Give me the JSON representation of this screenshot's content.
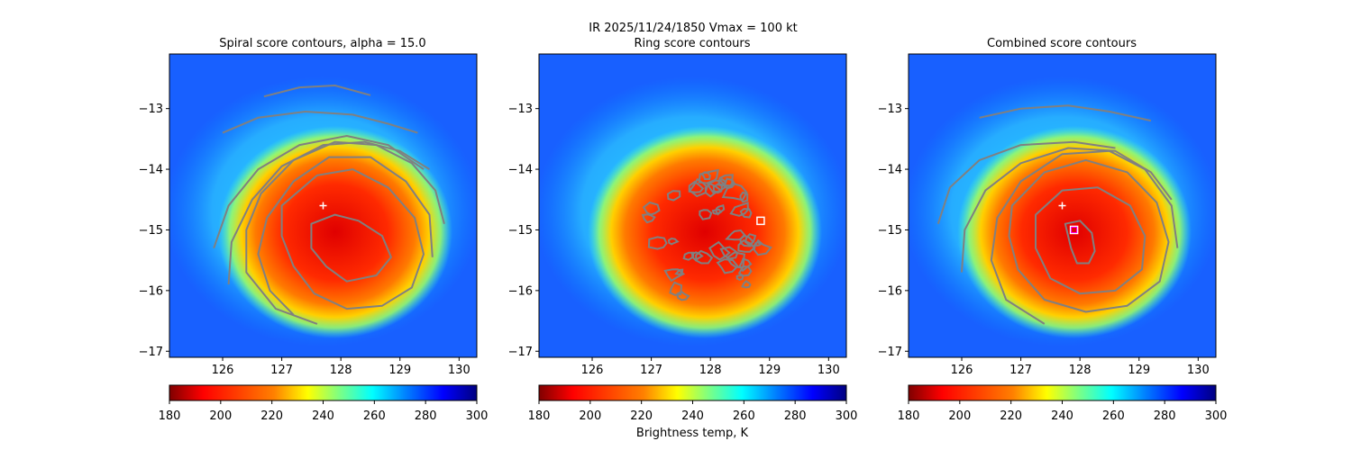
{
  "figure": {
    "suptitle_line1": "IR  2025/11/24/1850    Vmax = 100 kt",
    "colorbar_label": "Brightness temp, K"
  },
  "colormap": {
    "name": "jet_r",
    "stops": [
      "#800000",
      "#ff0000",
      "#ff8000",
      "#ffff00",
      "#80ff80",
      "#00ffff",
      "#0080ff",
      "#0000ff",
      "#000080"
    ],
    "contour_color": "#808080",
    "cross_color": "#ffffff",
    "ring_marker_color": "#ffffff",
    "combined_marker_color": "#ff00ff"
  },
  "chart_data": [
    {
      "type": "heatmap",
      "title": "Spiral score contours, alpha = 15.0",
      "xlim": [
        125.1,
        130.3
      ],
      "ylim": [
        -17.1,
        -12.1
      ],
      "xticks": [
        126,
        127,
        128,
        129,
        130
      ],
      "yticks": [
        -13,
        -14,
        -15,
        -16,
        -17
      ],
      "xticklabels": [
        "126",
        "127",
        "128",
        "129",
        "130"
      ],
      "yticklabels": [
        "−13",
        "−14",
        "−15",
        "−16",
        "−17"
      ],
      "storm_center": {
        "lon": 128.0,
        "lat": -15.3,
        "radius_deg": 2.0
      },
      "marker": {
        "symbol": "+",
        "lon": 127.7,
        "lat": -14.6
      },
      "contours": [
        {
          "closed": true,
          "points": [
            [
              127.5,
              -14.9
            ],
            [
              127.9,
              -14.75
            ],
            [
              128.3,
              -14.85
            ],
            [
              128.7,
              -15.1
            ],
            [
              128.85,
              -15.45
            ],
            [
              128.6,
              -15.75
            ],
            [
              128.1,
              -15.85
            ],
            [
              127.75,
              -15.6
            ],
            [
              127.5,
              -15.3
            ],
            [
              127.5,
              -14.9
            ]
          ]
        },
        {
          "closed": true,
          "points": [
            [
              127.0,
              -14.6
            ],
            [
              127.6,
              -14.1
            ],
            [
              128.2,
              -14.0
            ],
            [
              128.8,
              -14.3
            ],
            [
              129.25,
              -14.8
            ],
            [
              129.4,
              -15.4
            ],
            [
              129.2,
              -15.95
            ],
            [
              128.7,
              -16.25
            ],
            [
              128.1,
              -16.3
            ],
            [
              127.55,
              -16.05
            ],
            [
              127.2,
              -15.6
            ],
            [
              127.0,
              -15.1
            ],
            [
              127.0,
              -14.6
            ]
          ]
        },
        {
          "closed": false,
          "points": [
            [
              127.2,
              -16.4
            ],
            [
              126.8,
              -16.0
            ],
            [
              126.6,
              -15.4
            ],
            [
              126.75,
              -14.8
            ],
            [
              127.2,
              -14.2
            ],
            [
              127.8,
              -13.8
            ],
            [
              128.5,
              -13.8
            ],
            [
              129.1,
              -14.2
            ],
            [
              129.5,
              -14.75
            ],
            [
              129.55,
              -15.45
            ]
          ]
        },
        {
          "closed": false,
          "points": [
            [
              127.6,
              -16.55
            ],
            [
              126.9,
              -16.3
            ],
            [
              126.4,
              -15.7
            ],
            [
              126.4,
              -15.0
            ],
            [
              126.65,
              -14.4
            ],
            [
              127.2,
              -13.85
            ],
            [
              127.9,
              -13.55
            ],
            [
              128.6,
              -13.6
            ],
            [
              129.2,
              -13.9
            ],
            [
              129.6,
              -14.35
            ],
            [
              129.75,
              -14.9
            ]
          ]
        },
        {
          "closed": false,
          "points": [
            [
              126.1,
              -15.9
            ],
            [
              126.15,
              -15.2
            ],
            [
              126.5,
              -14.5
            ],
            [
              127.0,
              -13.95
            ],
            [
              127.7,
              -13.6
            ],
            [
              128.4,
              -13.55
            ],
            [
              129.0,
              -13.7
            ],
            [
              129.5,
              -14.0
            ]
          ]
        },
        {
          "closed": false,
          "points": [
            [
              125.85,
              -15.3
            ],
            [
              126.1,
              -14.6
            ],
            [
              126.6,
              -14.0
            ],
            [
              127.3,
              -13.6
            ],
            [
              128.1,
              -13.45
            ],
            [
              128.8,
              -13.6
            ],
            [
              129.4,
              -14.0
            ]
          ]
        },
        {
          "closed": false,
          "points": [
            [
              126.0,
              -13.4
            ],
            [
              126.6,
              -13.15
            ],
            [
              127.4,
              -13.05
            ],
            [
              128.2,
              -13.1
            ],
            [
              128.8,
              -13.25
            ],
            [
              129.3,
              -13.4
            ]
          ]
        },
        {
          "closed": false,
          "points": [
            [
              126.7,
              -12.8
            ],
            [
              127.3,
              -12.65
            ],
            [
              127.9,
              -12.62
            ],
            [
              128.5,
              -12.78
            ]
          ]
        }
      ]
    },
    {
      "type": "heatmap",
      "title": "Ring score contours",
      "xlim": [
        125.1,
        130.3
      ],
      "ylim": [
        -17.1,
        -12.1
      ],
      "xticks": [
        126,
        127,
        128,
        129,
        130
      ],
      "yticks": [
        -13,
        -14,
        -15,
        -16,
        -17
      ],
      "xticklabels": [
        "126",
        "127",
        "128",
        "129",
        "130"
      ],
      "yticklabels": [
        "−13",
        "−14",
        "−15",
        "−16",
        "−17"
      ],
      "storm_center": {
        "lon": 128.0,
        "lat": -15.3,
        "radius_deg": 2.0
      },
      "marker": {
        "symbol": "square",
        "lon": 128.85,
        "lat": -14.85
      },
      "contour_region": {
        "lon_min": 126.9,
        "lon_max": 129.0,
        "lat_min": -16.3,
        "lat_max": -14.0,
        "count": 55
      },
      "contours": []
    },
    {
      "type": "heatmap",
      "title": "Combined score contours",
      "xlim": [
        125.1,
        130.3
      ],
      "ylim": [
        -17.1,
        -12.1
      ],
      "xticks": [
        126,
        127,
        128,
        129,
        130
      ],
      "yticks": [
        -13,
        -14,
        -15,
        -16,
        -17
      ],
      "xticklabels": [
        "126",
        "127",
        "128",
        "129",
        "130"
      ],
      "yticklabels": [
        "−13",
        "−14",
        "−15",
        "−16",
        "−17"
      ],
      "storm_center": {
        "lon": 128.0,
        "lat": -15.3,
        "radius_deg": 2.0
      },
      "marker": {
        "symbol": "+",
        "lon": 127.7,
        "lat": -14.6
      },
      "marker2": {
        "symbol": "square",
        "lon": 127.9,
        "lat": -15.0
      },
      "contours": [
        {
          "closed": true,
          "points": [
            [
              127.75,
              -14.9
            ],
            [
              128.0,
              -14.85
            ],
            [
              128.2,
              -15.05
            ],
            [
              128.25,
              -15.35
            ],
            [
              128.15,
              -15.55
            ],
            [
              127.95,
              -15.55
            ],
            [
              127.85,
              -15.3
            ],
            [
              127.75,
              -14.9
            ]
          ]
        },
        {
          "closed": true,
          "points": [
            [
              127.25,
              -14.75
            ],
            [
              127.7,
              -14.35
            ],
            [
              128.3,
              -14.3
            ],
            [
              128.85,
              -14.6
            ],
            [
              129.1,
              -15.1
            ],
            [
              129.05,
              -15.65
            ],
            [
              128.6,
              -16.0
            ],
            [
              128.0,
              -16.05
            ],
            [
              127.5,
              -15.8
            ],
            [
              127.25,
              -15.3
            ],
            [
              127.25,
              -14.75
            ]
          ]
        },
        {
          "closed": true,
          "points": [
            [
              126.85,
              -14.6
            ],
            [
              127.4,
              -14.05
            ],
            [
              128.1,
              -13.85
            ],
            [
              128.8,
              -14.05
            ],
            [
              129.3,
              -14.55
            ],
            [
              129.5,
              -15.2
            ],
            [
              129.35,
              -15.85
            ],
            [
              128.8,
              -16.25
            ],
            [
              128.1,
              -16.35
            ],
            [
              127.4,
              -16.15
            ],
            [
              126.95,
              -15.65
            ],
            [
              126.8,
              -15.1
            ],
            [
              126.85,
              -14.6
            ]
          ]
        },
        {
          "closed": false,
          "points": [
            [
              127.4,
              -16.55
            ],
            [
              126.75,
              -16.15
            ],
            [
              126.5,
              -15.5
            ],
            [
              126.6,
              -14.8
            ],
            [
              127.0,
              -14.2
            ],
            [
              127.7,
              -13.75
            ],
            [
              128.5,
              -13.7
            ],
            [
              129.1,
              -14.0
            ],
            [
              129.55,
              -14.6
            ],
            [
              129.65,
              -15.3
            ]
          ]
        },
        {
          "closed": false,
          "points": [
            [
              126.0,
              -15.7
            ],
            [
              126.05,
              -15.0
            ],
            [
              126.4,
              -14.35
            ],
            [
              127.0,
              -13.9
            ],
            [
              127.8,
              -13.65
            ],
            [
              128.6,
              -13.7
            ],
            [
              129.2,
              -14.05
            ],
            [
              129.55,
              -14.5
            ]
          ]
        },
        {
          "closed": false,
          "points": [
            [
              125.6,
              -14.9
            ],
            [
              125.8,
              -14.3
            ],
            [
              126.3,
              -13.85
            ],
            [
              127.0,
              -13.6
            ],
            [
              127.9,
              -13.55
            ],
            [
              128.6,
              -13.65
            ]
          ]
        },
        {
          "closed": false,
          "points": [
            [
              126.3,
              -13.15
            ],
            [
              127.0,
              -13.0
            ],
            [
              127.8,
              -12.95
            ],
            [
              128.5,
              -13.05
            ],
            [
              129.2,
              -13.2
            ]
          ]
        }
      ]
    }
  ],
  "colorbars": [
    {
      "ticks": [
        180,
        200,
        220,
        240,
        260,
        280,
        300
      ],
      "ticklabels": [
        "180",
        "200",
        "220",
        "240",
        "260",
        "280",
        "300"
      ],
      "range": [
        180,
        300
      ]
    },
    {
      "ticks": [
        180,
        200,
        220,
        240,
        260,
        280,
        300
      ],
      "ticklabels": [
        "180",
        "200",
        "220",
        "240",
        "260",
        "280",
        "300"
      ],
      "range": [
        180,
        300
      ]
    },
    {
      "ticks": [
        180,
        200,
        220,
        240,
        260,
        280,
        300
      ],
      "ticklabels": [
        "180",
        "200",
        "220",
        "240",
        "260",
        "280",
        "300"
      ],
      "range": [
        180,
        300
      ]
    }
  ]
}
